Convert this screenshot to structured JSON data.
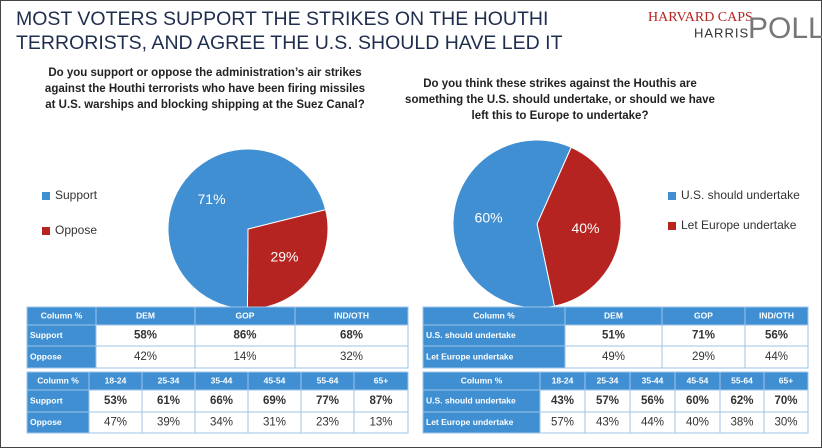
{
  "title": [
    "MOST VOTERS SUPPORT THE STRIKES ON THE HOUTHI",
    "TERRORISTS, AND AGREE THE U.S. SHOULD HAVE LED IT"
  ],
  "logo": {
    "line1": "HARVARD CAPS",
    "line2": "HARRIS",
    "line3": "POLL"
  },
  "chart_data": [
    {
      "type": "pie",
      "title": [
        "Do you support or oppose the administration’s air strikes",
        "against the Houthi terrorists who have been firing missiles",
        "at U.S. warships and blocking shipping at the Suez Canal?"
      ],
      "categories": [
        "Support",
        "Oppose"
      ],
      "values": [
        71,
        29
      ],
      "value_labels": [
        "71%",
        "29%"
      ],
      "colors": [
        "#3f8fd2",
        "#b52420"
      ],
      "legend": "left"
    },
    {
      "type": "pie",
      "title": [
        "Do you think these strikes against the Houthis are",
        "something the U.S. should undertake, or should we have",
        "left this to Europe to undertake?"
      ],
      "categories": [
        "U.S. should undertake",
        "Let Europe undertake"
      ],
      "values": [
        60,
        40
      ],
      "value_labels": [
        "60%",
        "40%"
      ],
      "colors": [
        "#3f8fd2",
        "#b52420"
      ],
      "legend": "right"
    }
  ],
  "tables": [
    {
      "header": [
        "Column %",
        "DEM",
        "GOP",
        "IND/OTH"
      ],
      "rows": [
        [
          "Support",
          "58%",
          "86%",
          "68%"
        ],
        [
          "Oppose",
          "42%",
          "14%",
          "32%"
        ]
      ]
    },
    {
      "header": [
        "Column %",
        "18-24",
        "25-34",
        "35-44",
        "45-54",
        "55-64",
        "65+"
      ],
      "rows": [
        [
          "Support",
          "53%",
          "61%",
          "66%",
          "69%",
          "77%",
          "87%"
        ],
        [
          "Oppose",
          "47%",
          "39%",
          "34%",
          "31%",
          "23%",
          "13%"
        ]
      ]
    },
    {
      "header": [
        "Column %",
        "DEM",
        "GOP",
        "IND/OTH"
      ],
      "rows": [
        [
          "U.S. should undertake",
          "51%",
          "71%",
          "56%"
        ],
        [
          "Let Europe undertake",
          "49%",
          "29%",
          "44%"
        ]
      ]
    },
    {
      "header": [
        "Column %",
        "18-24",
        "25-34",
        "35-44",
        "45-54",
        "55-64",
        "65+"
      ],
      "rows": [
        [
          "U.S. should undertake",
          "43%",
          "57%",
          "56%",
          "60%",
          "62%",
          "70%"
        ],
        [
          "Let Europe undertake",
          "57%",
          "43%",
          "44%",
          "40%",
          "38%",
          "30%"
        ]
      ]
    }
  ]
}
